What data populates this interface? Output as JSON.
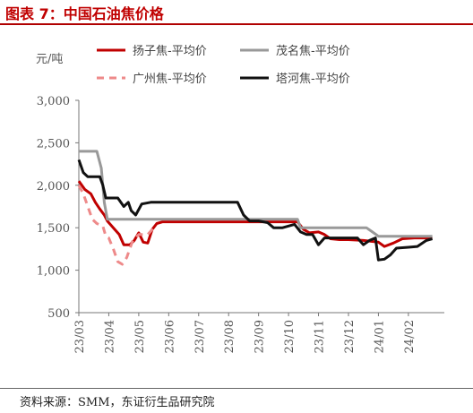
{
  "title": "图表 7：中国石油焦价格",
  "source": "资料来源：SMM，东证衍生品研究院",
  "chart_data": {
    "type": "line",
    "unit_label": "元/吨",
    "xlabel": "",
    "ylabel": "",
    "ylim": [
      500,
      3000
    ],
    "yticks": [
      500,
      1000,
      1500,
      2000,
      2500,
      3000
    ],
    "ytick_labels": [
      "500",
      "1,000",
      "1,500",
      "2,000",
      "2,500",
      "3,000"
    ],
    "categories": [
      "23/03",
      "23/04",
      "23/05",
      "23/06",
      "23/07",
      "23/08",
      "23/09",
      "23/10",
      "23/11",
      "23/12",
      "24/01",
      "24/02"
    ],
    "xlim": [
      0,
      12.2
    ],
    "grid": false,
    "legend": "top",
    "series": [
      {
        "name": "扬子焦-平均价",
        "color": "#c00000",
        "dash": "solid",
        "width": 3,
        "points": [
          [
            0,
            2050
          ],
          [
            0.2,
            1950
          ],
          [
            0.4,
            1900
          ],
          [
            0.55,
            1800
          ],
          [
            0.7,
            1720
          ],
          [
            0.85,
            1650
          ],
          [
            0.95,
            1580
          ],
          [
            1.0,
            1560
          ],
          [
            1.2,
            1480
          ],
          [
            1.35,
            1420
          ],
          [
            1.5,
            1300
          ],
          [
            1.7,
            1300
          ],
          [
            1.85,
            1350
          ],
          [
            2.0,
            1440
          ],
          [
            2.15,
            1330
          ],
          [
            2.3,
            1320
          ],
          [
            2.45,
            1480
          ],
          [
            2.6,
            1550
          ],
          [
            2.8,
            1570
          ],
          [
            3.0,
            1570
          ],
          [
            4.0,
            1570
          ],
          [
            5.0,
            1570
          ],
          [
            6.0,
            1570
          ],
          [
            7.0,
            1570
          ],
          [
            7.3,
            1570
          ],
          [
            7.5,
            1480
          ],
          [
            7.7,
            1440
          ],
          [
            8.0,
            1450
          ],
          [
            8.2,
            1420
          ],
          [
            8.4,
            1370
          ],
          [
            8.7,
            1360
          ],
          [
            9.0,
            1360
          ],
          [
            9.5,
            1350
          ],
          [
            10.0,
            1330
          ],
          [
            10.2,
            1280
          ],
          [
            10.5,
            1320
          ],
          [
            10.8,
            1370
          ],
          [
            11.2,
            1380
          ],
          [
            11.8,
            1380
          ]
        ]
      },
      {
        "name": "茂名焦-平均价",
        "color": "#999999",
        "dash": "solid",
        "width": 3,
        "points": [
          [
            0,
            2400
          ],
          [
            0.6,
            2400
          ],
          [
            0.75,
            2200
          ],
          [
            0.85,
            1800
          ],
          [
            0.95,
            1600
          ],
          [
            1.1,
            1600
          ],
          [
            2.0,
            1600
          ],
          [
            3.0,
            1600
          ],
          [
            4.0,
            1600
          ],
          [
            5.0,
            1600
          ],
          [
            6.0,
            1600
          ],
          [
            7.0,
            1600
          ],
          [
            7.3,
            1600
          ],
          [
            7.4,
            1500
          ],
          [
            8.0,
            1500
          ],
          [
            9.0,
            1500
          ],
          [
            9.6,
            1500
          ],
          [
            9.8,
            1450
          ],
          [
            10.0,
            1400
          ],
          [
            10.5,
            1400
          ],
          [
            11.0,
            1400
          ],
          [
            11.8,
            1400
          ]
        ]
      },
      {
        "name": "广州焦-平均价",
        "color": "#ee8a8a",
        "dash": "8 6",
        "width": 3,
        "points": [
          [
            0,
            2000
          ],
          [
            0.15,
            1900
          ],
          [
            0.3,
            1750
          ],
          [
            0.45,
            1600
          ],
          [
            0.6,
            1550
          ],
          [
            0.8,
            1520
          ],
          [
            0.9,
            1400
          ],
          [
            1.0,
            1380
          ],
          [
            1.15,
            1250
          ],
          [
            1.3,
            1100
          ],
          [
            1.45,
            1070
          ],
          [
            1.6,
            1150
          ],
          [
            1.8,
            1350
          ],
          [
            2.0,
            1420
          ],
          [
            2.3,
            1420
          ],
          [
            2.5,
            1500
          ]
        ]
      },
      {
        "name": "塔河焦-平均价",
        "color": "#111111",
        "dash": "solid",
        "width": 3,
        "points": [
          [
            0,
            2300
          ],
          [
            0.15,
            2150
          ],
          [
            0.3,
            2100
          ],
          [
            0.5,
            2100
          ],
          [
            0.7,
            2100
          ],
          [
            0.8,
            2000
          ],
          [
            0.9,
            1850
          ],
          [
            1.3,
            1850
          ],
          [
            1.5,
            1750
          ],
          [
            1.65,
            1800
          ],
          [
            1.75,
            1700
          ],
          [
            1.9,
            1650
          ],
          [
            2.1,
            1780
          ],
          [
            2.4,
            1800
          ],
          [
            2.8,
            1800
          ],
          [
            3.5,
            1800
          ],
          [
            4.5,
            1800
          ],
          [
            5.3,
            1800
          ],
          [
            5.5,
            1650
          ],
          [
            5.7,
            1580
          ],
          [
            6.0,
            1580
          ],
          [
            6.3,
            1560
          ],
          [
            6.5,
            1500
          ],
          [
            6.8,
            1500
          ],
          [
            7.0,
            1520
          ],
          [
            7.2,
            1540
          ],
          [
            7.4,
            1450
          ],
          [
            7.6,
            1420
          ],
          [
            7.8,
            1420
          ],
          [
            8.0,
            1300
          ],
          [
            8.2,
            1380
          ],
          [
            8.5,
            1380
          ],
          [
            9.0,
            1380
          ],
          [
            9.3,
            1380
          ],
          [
            9.5,
            1300
          ],
          [
            9.7,
            1350
          ],
          [
            9.9,
            1380
          ],
          [
            10.0,
            1120
          ],
          [
            10.2,
            1130
          ],
          [
            10.4,
            1180
          ],
          [
            10.6,
            1260
          ],
          [
            11.0,
            1270
          ],
          [
            11.3,
            1280
          ],
          [
            11.6,
            1350
          ],
          [
            11.8,
            1370
          ]
        ]
      }
    ]
  }
}
